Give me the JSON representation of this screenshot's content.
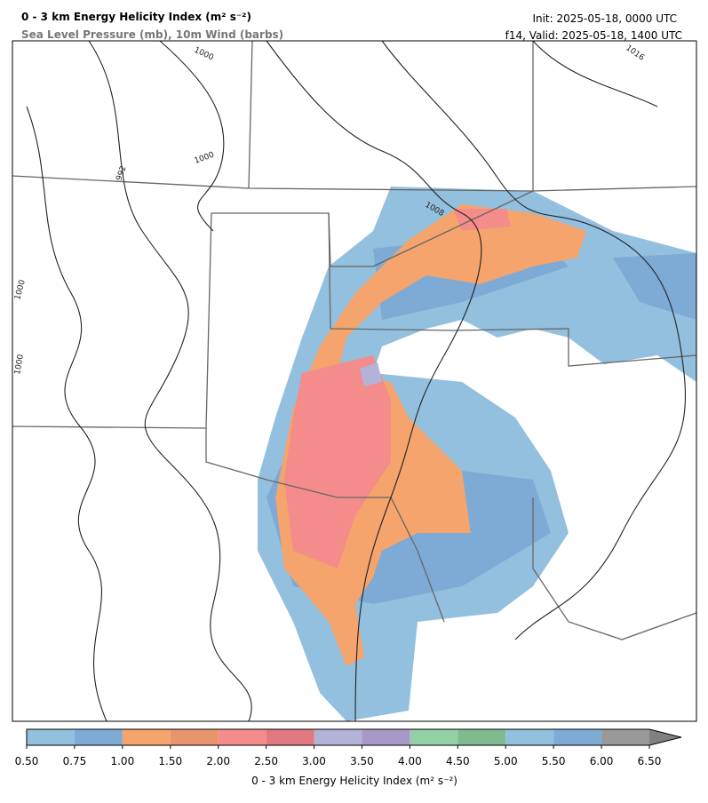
{
  "header": {
    "title": "0 - 3 km Energy Helicity Index (m² s⁻²)",
    "subtitle": "Sea Level Pressure (mb), 10m Wind (barbs)",
    "init": "Init: 2025-05-18, 0000 UTC",
    "valid": "f14, Valid: 2025-05-18, 1400 UTC"
  },
  "map": {
    "contour_labels": [
      1000,
      992,
      1000,
      1008,
      1016,
      1000,
      1000
    ]
  },
  "colorbar": {
    "label": "0 - 3 km Energy Helicity Index (m² s⁻²)",
    "ticks": [
      {
        "value": 0.5,
        "label": "0.50"
      },
      {
        "value": 0.75,
        "label": "0.75"
      },
      {
        "value": 1,
        "label": "1.00"
      },
      {
        "value": 1.5,
        "label": "1.50"
      },
      {
        "value": 2,
        "label": "2.00"
      },
      {
        "value": 2.5,
        "label": "2.50"
      },
      {
        "value": 3,
        "label": "3.00"
      },
      {
        "value": 3.5,
        "label": "3.50"
      },
      {
        "value": 4,
        "label": "4.00"
      },
      {
        "value": 4.5,
        "label": "4.50"
      },
      {
        "value": 5,
        "label": "5.00"
      },
      {
        "value": 5.5,
        "label": "5.50"
      },
      {
        "value": 6,
        "label": "6.00"
      },
      {
        "value": 6.5,
        "label": "6.50"
      }
    ],
    "colors": [
      "#93c0de",
      "#7eaad6",
      "#f4a46c",
      "#e8956d",
      "#f38c8a",
      "#e07a80",
      "#b3b3d8",
      "#a898c8",
      "#94d0a5",
      "#80bb90",
      "#93c0de",
      "#7eaad6",
      "#999999"
    ],
    "extend_color": "#808080"
  }
}
